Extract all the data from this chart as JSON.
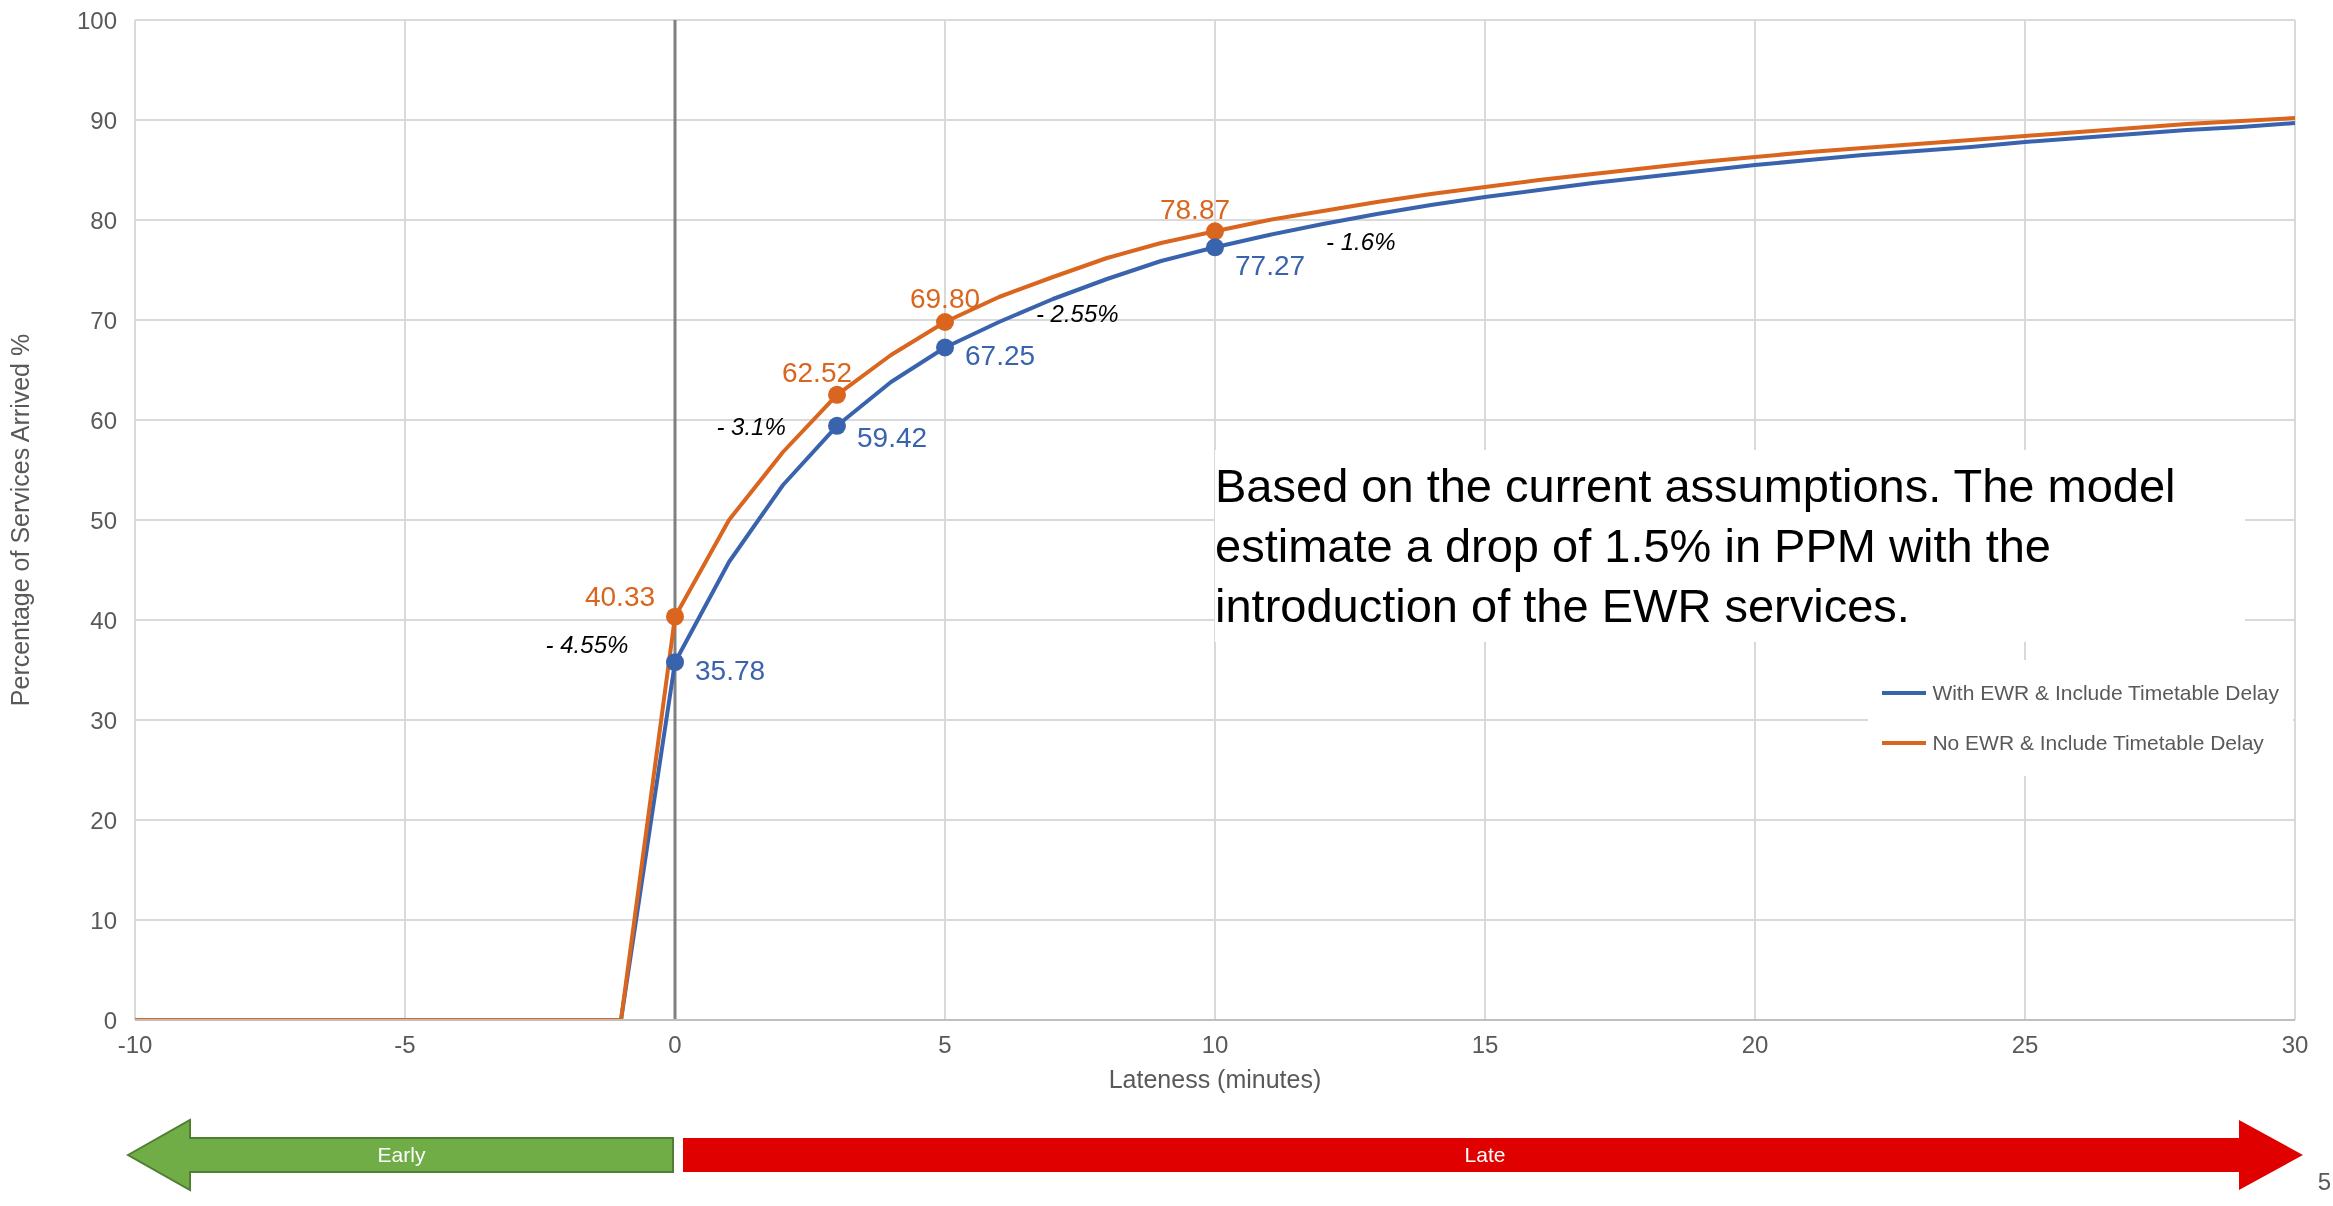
{
  "chart_data": {
    "type": "line",
    "xlabel": "Lateness (minutes)",
    "ylabel": "Percentage of Services Arrived %",
    "xlim": [
      -10,
      30
    ],
    "xticks": [
      -10,
      -5,
      0,
      5,
      10,
      15,
      20,
      25,
      30
    ],
    "ylim": [
      0,
      100
    ],
    "yticks": [
      0,
      10,
      20,
      30,
      40,
      50,
      60,
      70,
      80,
      90,
      100
    ],
    "grid": true,
    "legend": "right",
    "line_style": "solid",
    "x": [
      -10,
      -9,
      -8,
      -7,
      -6,
      -5,
      -4,
      -3,
      -2,
      -1,
      0,
      1,
      2,
      3,
      4,
      5,
      6,
      7,
      8,
      9,
      10,
      11,
      12,
      13,
      14,
      15,
      16,
      17,
      18,
      19,
      20,
      21,
      22,
      23,
      24,
      25,
      26,
      27,
      28,
      29,
      30
    ],
    "series": [
      {
        "name": "With EWR & Include Timetable Delay",
        "color": "#3a63ad",
        "values": [
          null,
          null,
          null,
          null,
          null,
          null,
          null,
          null,
          0,
          0,
          35.78,
          45.8,
          53.5,
          59.42,
          63.8,
          67.25,
          69.8,
          72.1,
          74.1,
          75.9,
          77.27,
          78.5,
          79.6,
          80.6,
          81.5,
          82.3,
          83.0,
          83.7,
          84.3,
          84.9,
          85.5,
          86.0,
          86.5,
          86.9,
          87.3,
          87.8,
          88.2,
          88.6,
          89.0,
          89.3,
          89.7
        ]
      },
      {
        "name": "No EWR & Include Timetable Delay",
        "color": "#d9651e",
        "values": [
          0,
          0,
          0,
          0,
          0,
          0,
          0,
          0,
          0,
          0,
          40.33,
          50.0,
          56.8,
          62.52,
          66.5,
          69.8,
          72.3,
          74.3,
          76.2,
          77.7,
          78.87,
          80.0,
          80.9,
          81.8,
          82.6,
          83.3,
          84.0,
          84.6,
          85.2,
          85.8,
          86.3,
          86.8,
          87.2,
          87.6,
          88.0,
          88.4,
          88.8,
          89.2,
          89.6,
          89.9,
          90.2
        ]
      },
      {
        "type": "scatter",
        "marker": "circle",
        "color": "#d9651e",
        "x": [
          0,
          3,
          5,
          10
        ],
        "values": [
          40.33,
          62.52,
          69.8,
          78.87
        ],
        "value_labels": [
          "40.33",
          "62.52",
          "69.80",
          "78.87"
        ]
      },
      {
        "type": "scatter",
        "marker": "circle",
        "color": "#3a63ad",
        "x": [
          0,
          3,
          5,
          10
        ],
        "values": [
          35.78,
          59.42,
          67.25,
          77.27
        ],
        "value_labels": [
          "35.78",
          "59.42",
          "67.25",
          "77.27"
        ]
      }
    ],
    "ref_lines": [
      {
        "axis": "x",
        "value": 0,
        "color": "#808080"
      }
    ],
    "annotations": [
      "- 4.55%",
      "- 3.1%",
      "- 2.55%",
      "- 1.6%",
      "Based on the current assumptions. The model estimate a drop of 1.5% in PPM with the introduction of the EWR services.",
      "Early",
      "Late",
      "5"
    ]
  }
}
